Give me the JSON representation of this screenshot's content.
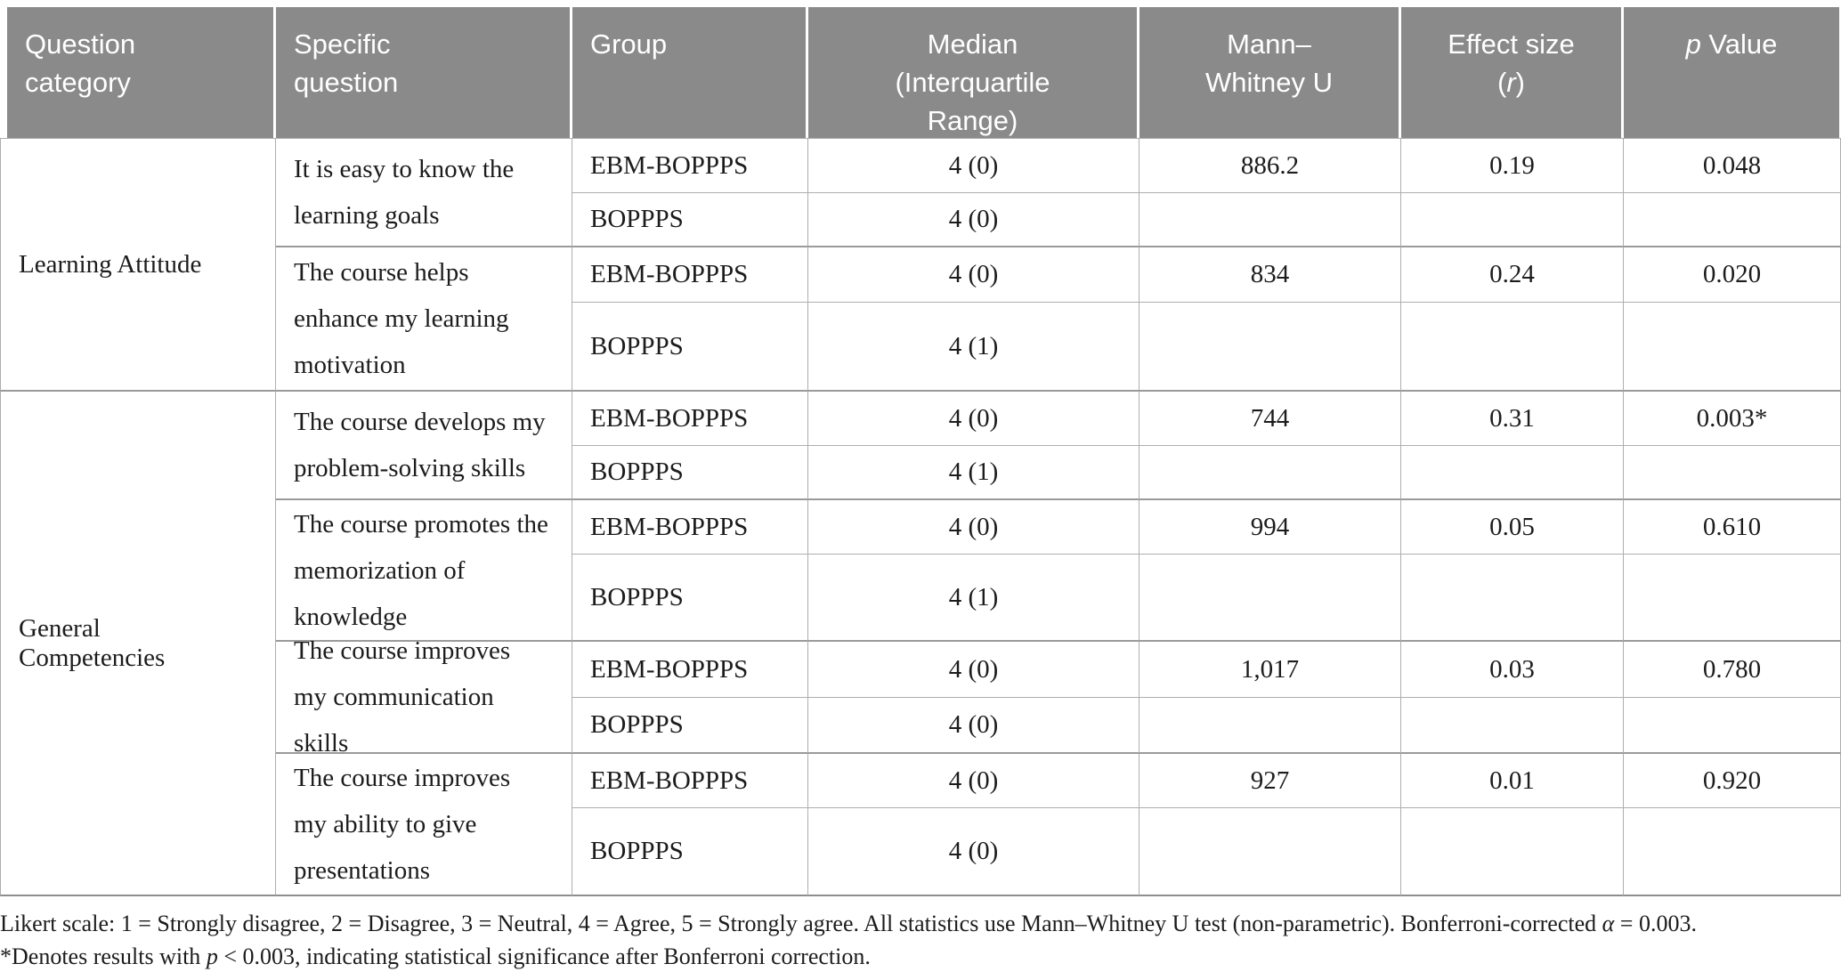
{
  "header": {
    "question_category": "Question category",
    "specific_question": "Specific question",
    "group": "Group",
    "median": "Median (Interquartile Range)",
    "mann_whitney_u": "Mann–Whitney U",
    "effect_size_pre": "Effect size (",
    "effect_size_italic": "r",
    "effect_size_post": ")",
    "p_value_italic": "p",
    "p_value_post": " Value"
  },
  "table": {
    "sections": [
      {
        "category": "Learning Attitude",
        "questions": [
          {
            "text": "It is easy to know the learning goals",
            "rows": [
              {
                "group": "EBM-BOPPPS",
                "median": "4 (0)",
                "u": "886.2",
                "r": "0.19",
                "p": "0.048"
              },
              {
                "group": "BOPPPS",
                "median": "4 (0)",
                "u": "",
                "r": "",
                "p": ""
              }
            ]
          },
          {
            "text": "The course helps enhance my learning motivation",
            "rows": [
              {
                "group": "EBM-BOPPPS",
                "median": "4 (0)",
                "u": "834",
                "r": "0.24",
                "p": "0.020"
              },
              {
                "group": "BOPPPS",
                "median": "4 (1)",
                "u": "",
                "r": "",
                "p": ""
              }
            ]
          }
        ]
      },
      {
        "category": "General Competencies",
        "questions": [
          {
            "text": "The course develops my problem-solving skills",
            "rows": [
              {
                "group": "EBM-BOPPPS",
                "median": "4 (0)",
                "u": "744",
                "r": "0.31",
                "p": "0.003*"
              },
              {
                "group": "BOPPPS",
                "median": "4 (1)",
                "u": "",
                "r": "",
                "p": ""
              }
            ]
          },
          {
            "text": "The course promotes the memorization of knowledge",
            "rows": [
              {
                "group": "EBM-BOPPPS",
                "median": "4 (0)",
                "u": "994",
                "r": "0.05",
                "p": "0.610"
              },
              {
                "group": "BOPPPS",
                "median": "4 (1)",
                "u": "",
                "r": "",
                "p": ""
              }
            ]
          },
          {
            "text": "The course improves my communication skills",
            "rows": [
              {
                "group": "EBM-BOPPPS",
                "median": "4 (0)",
                "u": "1,017",
                "r": "0.03",
                "p": "0.780"
              },
              {
                "group": "BOPPPS",
                "median": "4 (0)",
                "u": "",
                "r": "",
                "p": ""
              }
            ]
          },
          {
            "text": "The course improves my ability to give presentations",
            "rows": [
              {
                "group": "EBM-BOPPPS",
                "median": "4 (0)",
                "u": "927",
                "r": "0.01",
                "p": "0.920"
              },
              {
                "group": "BOPPPS",
                "median": "4 (0)",
                "u": "",
                "r": "",
                "p": ""
              }
            ]
          }
        ]
      }
    ]
  },
  "footnote": {
    "line1_pre": "Likert scale: 1 = Strongly disagree, 2 = Disagree, 3 = Neutral, 4 = Agree, 5 = Strongly agree. All statistics use Mann–Whitney U test (non-parametric). Bonferroni-corrected ",
    "line1_italic": "α",
    "line1_post": " = 0.003.",
    "line2_pre": "*Denotes results with ",
    "line2_italic": "p",
    "line2_post": " < 0.003, indicating statistical significance after Bonferroni correction."
  },
  "colors": {
    "header_bg": "#8a8a8a",
    "header_text": "#ffffff",
    "body_text": "#1c1c1c",
    "grid_line": "#aeaeae",
    "table_bottom_line": "#8d8d8d"
  }
}
